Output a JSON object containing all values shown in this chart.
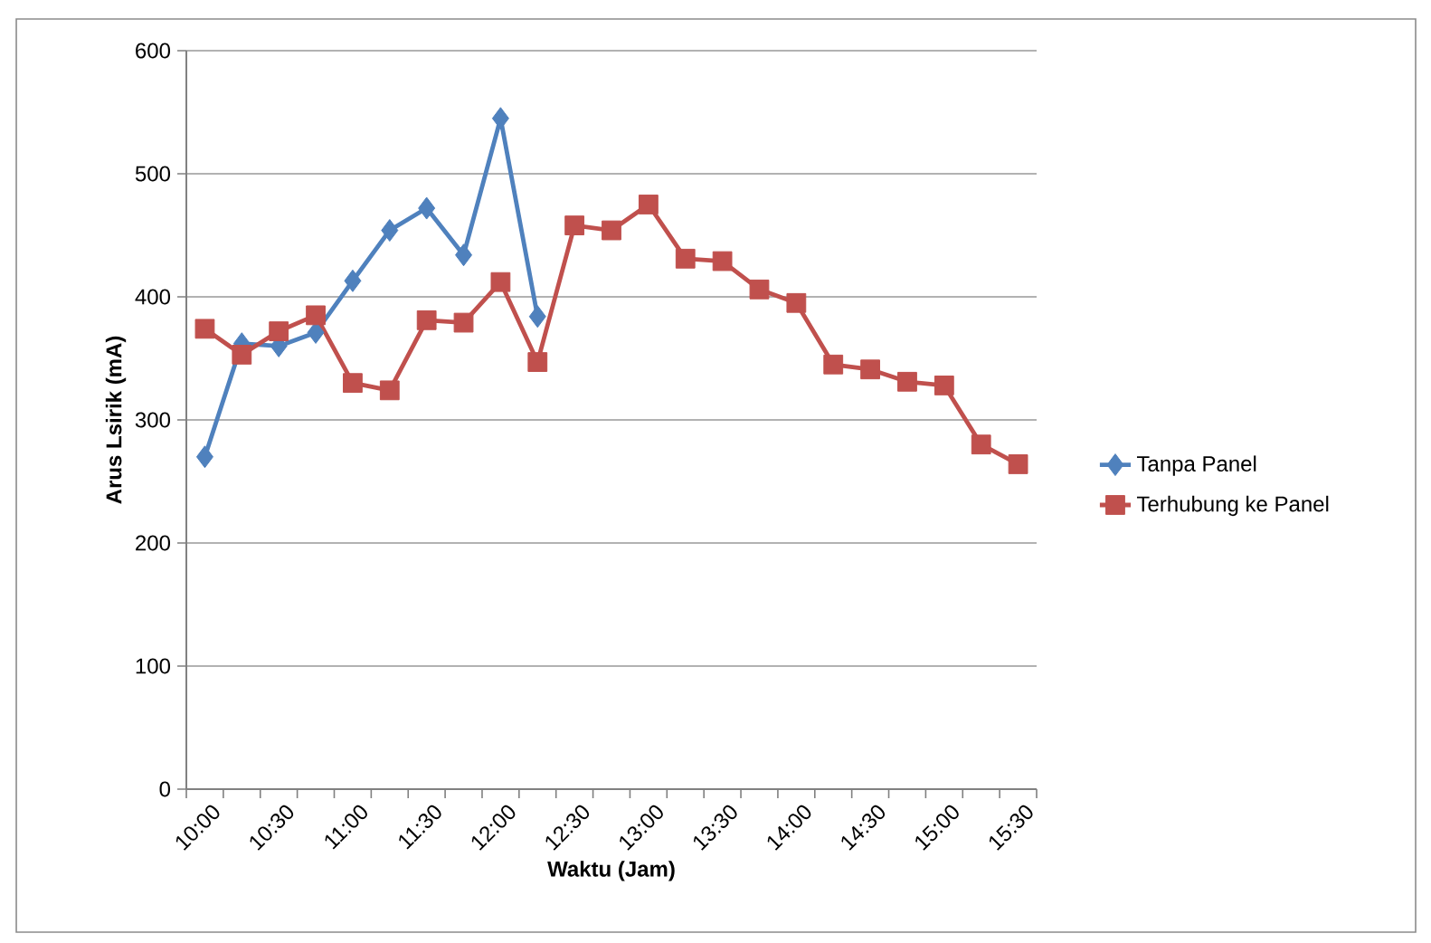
{
  "chart_data": {
    "type": "line",
    "xlabel": "Waktu (Jam)",
    "ylabel": "Arus Lsirik (mA)",
    "categories": [
      "10:00",
      null,
      "10:30",
      null,
      "11:00",
      null,
      "11:30",
      null,
      "12:00",
      null,
      "12:30",
      null,
      "13:00",
      null,
      "13:30",
      null,
      "14:00",
      null,
      "14:30",
      null,
      "15:00",
      null,
      "15:30"
    ],
    "series": [
      {
        "name": "Tanpa Panel",
        "color": "#4f81bd",
        "marker": "diamond",
        "values": [
          270,
          362,
          360,
          371,
          413,
          454,
          472,
          434,
          545,
          384,
          null,
          null,
          null,
          null,
          null,
          null,
          null,
          null,
          null,
          null,
          null,
          null,
          null
        ]
      },
      {
        "name": "Terhubung ke Panel",
        "color": "#c0504d",
        "marker": "square",
        "values": [
          374,
          353,
          372,
          385,
          330,
          324,
          381,
          379,
          412,
          347,
          458,
          454,
          475,
          431,
          429,
          406,
          395,
          345,
          341,
          331,
          328,
          280,
          264
        ]
      }
    ],
    "ylim": [
      0,
      600
    ],
    "yticks": [
      0,
      100,
      200,
      300,
      400,
      500,
      600
    ],
    "grid": "y",
    "legend": "right"
  }
}
